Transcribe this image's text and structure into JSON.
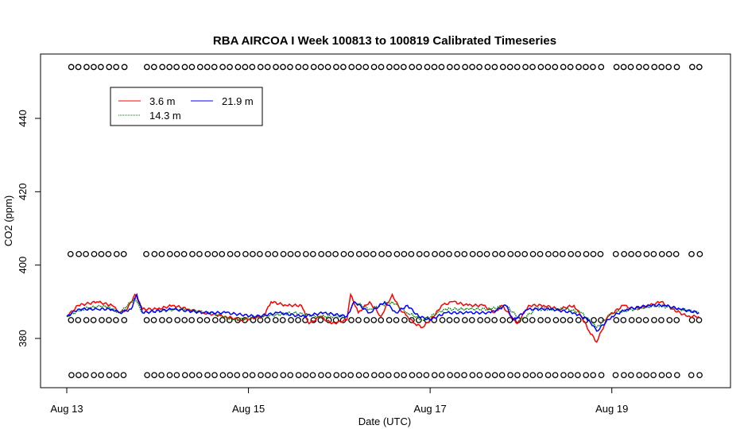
{
  "chart_data": {
    "type": "line",
    "title": "RBA AIRCOA I  Week 100813 to 100819  Calibrated Timeseries",
    "xlabel": "Date (UTC)",
    "ylabel": "CO2 (ppm)",
    "xlim": [
      "2010-08-13T00:00",
      "2010-08-20T00:00"
    ],
    "ylim": [
      367,
      457
    ],
    "x_ticks": [
      {
        "date": "2010-08-13T00:00",
        "label": "Aug 13"
      },
      {
        "date": "2010-08-15T00:00",
        "label": "Aug 15"
      },
      {
        "date": "2010-08-17T00:00",
        "label": "Aug 17"
      },
      {
        "date": "2010-08-19T00:00",
        "label": "Aug 19"
      }
    ],
    "y_ticks": [
      380,
      400,
      420,
      440
    ],
    "legend": {
      "placement": "top-left",
      "entries": [
        {
          "label": "3.6 m",
          "color": "#ff0000",
          "line": "solid"
        },
        {
          "label": "14.3 m",
          "color": "#008000",
          "line": "dotted"
        },
        {
          "label": "21.9 m",
          "color": "#0000ff",
          "line": "solid"
        }
      ]
    },
    "series": [
      {
        "name": "3.6 m",
        "color": "#ff0000",
        "points": [
          [
            "2010-08-13T00:00",
            386
          ],
          [
            "2010-08-13T03:00",
            389
          ],
          [
            "2010-08-13T08:00",
            390
          ],
          [
            "2010-08-13T12:00",
            389
          ],
          [
            "2010-08-13T14:00",
            387
          ],
          [
            "2010-08-13T16:00",
            388
          ],
          [
            "2010-08-13T18:00",
            392
          ],
          [
            "2010-08-13T20:00",
            388
          ],
          [
            "2010-08-14T00:00",
            388
          ],
          [
            "2010-08-14T04:00",
            389
          ],
          [
            "2010-08-14T08:00",
            388
          ],
          [
            "2010-08-14T12:00",
            387
          ],
          [
            "2010-08-14T18:00",
            386
          ],
          [
            "2010-08-14T22:00",
            385
          ],
          [
            "2010-08-15T04:00",
            386
          ],
          [
            "2010-08-15T06:00",
            390
          ],
          [
            "2010-08-15T10:00",
            389
          ],
          [
            "2010-08-15T14:00",
            389
          ],
          [
            "2010-08-15T16:00",
            384
          ],
          [
            "2010-08-15T19:00",
            386
          ],
          [
            "2010-08-15T22:00",
            384
          ],
          [
            "2010-08-16T02:00",
            385
          ],
          [
            "2010-08-16T03:00",
            392
          ],
          [
            "2010-08-16T05:00",
            387
          ],
          [
            "2010-08-16T08:00",
            390
          ],
          [
            "2010-08-16T11:00",
            386
          ],
          [
            "2010-08-16T14:00",
            392
          ],
          [
            "2010-08-16T16:00",
            388
          ],
          [
            "2010-08-16T18:00",
            386
          ],
          [
            "2010-08-16T20:00",
            384
          ],
          [
            "2010-08-16T22:00",
            383
          ],
          [
            "2010-08-17T01:00",
            386
          ],
          [
            "2010-08-17T03:00",
            389
          ],
          [
            "2010-08-17T06:00",
            390
          ],
          [
            "2010-08-17T10:00",
            389
          ],
          [
            "2010-08-17T14:00",
            389
          ],
          [
            "2010-08-17T17:00",
            387
          ],
          [
            "2010-08-17T19:00",
            389
          ],
          [
            "2010-08-17T23:00",
            384
          ],
          [
            "2010-08-18T02:00",
            389
          ],
          [
            "2010-08-18T06:00",
            389
          ],
          [
            "2010-08-18T10:00",
            388
          ],
          [
            "2010-08-18T14:00",
            389
          ],
          [
            "2010-08-18T16:00",
            386
          ],
          [
            "2010-08-18T18:00",
            382
          ],
          [
            "2010-08-18T20:00",
            379
          ],
          [
            "2010-08-18T23:00",
            386
          ],
          [
            "2010-08-19T03:00",
            389
          ],
          [
            "2010-08-19T06:00",
            388
          ],
          [
            "2010-08-19T10:00",
            389
          ],
          [
            "2010-08-19T13:00",
            390
          ],
          [
            "2010-08-19T16:00",
            388
          ],
          [
            "2010-08-19T20:00",
            386
          ],
          [
            "2010-08-19T23:00",
            386
          ]
        ]
      },
      {
        "name": "14.3 m",
        "color": "#008000",
        "points": [
          [
            "2010-08-13T00:00",
            386
          ],
          [
            "2010-08-13T04:00",
            388
          ],
          [
            "2010-08-13T10:00",
            389
          ],
          [
            "2010-08-13T14:00",
            387
          ],
          [
            "2010-08-13T18:00",
            391
          ],
          [
            "2010-08-13T20:00",
            387
          ],
          [
            "2010-08-14T06:00",
            388
          ],
          [
            "2010-08-14T14:00",
            387
          ],
          [
            "2010-08-14T20:00",
            385
          ],
          [
            "2010-08-15T04:00",
            386
          ],
          [
            "2010-08-15T12:00",
            387
          ],
          [
            "2010-08-15T18:00",
            386
          ],
          [
            "2010-08-16T02:00",
            386
          ],
          [
            "2010-08-16T04:00",
            390
          ],
          [
            "2010-08-16T08:00",
            388
          ],
          [
            "2010-08-16T14:00",
            390
          ],
          [
            "2010-08-16T18:00",
            387
          ],
          [
            "2010-08-16T22:00",
            385
          ],
          [
            "2010-08-17T04:00",
            388
          ],
          [
            "2010-08-17T10:00",
            388
          ],
          [
            "2010-08-17T16:00",
            388
          ],
          [
            "2010-08-17T20:00",
            389
          ],
          [
            "2010-08-18T00:00",
            385
          ],
          [
            "2010-08-18T04:00",
            388
          ],
          [
            "2010-08-18T12:00",
            388
          ],
          [
            "2010-08-18T16:00",
            387
          ],
          [
            "2010-08-18T20:00",
            383
          ],
          [
            "2010-08-19T00:00",
            387
          ],
          [
            "2010-08-19T06:00",
            388
          ],
          [
            "2010-08-19T12:00",
            389
          ],
          [
            "2010-08-19T18:00",
            388
          ],
          [
            "2010-08-19T23:00",
            387
          ]
        ]
      },
      {
        "name": "21.9 m",
        "color": "#0000ff",
        "points": [
          [
            "2010-08-13T00:00",
            386
          ],
          [
            "2010-08-13T03:00",
            388
          ],
          [
            "2010-08-13T08:00",
            388
          ],
          [
            "2010-08-13T12:00",
            388
          ],
          [
            "2010-08-13T14:00",
            387
          ],
          [
            "2010-08-13T17:00",
            388
          ],
          [
            "2010-08-13T18:30",
            392
          ],
          [
            "2010-08-13T20:00",
            387
          ],
          [
            "2010-08-14T04:00",
            388
          ],
          [
            "2010-08-14T12:00",
            387
          ],
          [
            "2010-08-14T18:00",
            387
          ],
          [
            "2010-08-15T02:00",
            386
          ],
          [
            "2010-08-15T08:00",
            387
          ],
          [
            "2010-08-15T14:00",
            386
          ],
          [
            "2010-08-15T20:00",
            387
          ],
          [
            "2010-08-16T02:00",
            386
          ],
          [
            "2010-08-16T04:00",
            390
          ],
          [
            "2010-08-16T08:00",
            387
          ],
          [
            "2010-08-16T12:00",
            390
          ],
          [
            "2010-08-16T15:00",
            387
          ],
          [
            "2010-08-16T18:00",
            389
          ],
          [
            "2010-08-16T21:00",
            386
          ],
          [
            "2010-08-17T00:00",
            385
          ],
          [
            "2010-08-17T04:00",
            387
          ],
          [
            "2010-08-17T10:00",
            387
          ],
          [
            "2010-08-17T16:00",
            387
          ],
          [
            "2010-08-17T20:00",
            389
          ],
          [
            "2010-08-17T22:00",
            385
          ],
          [
            "2010-08-18T02:00",
            388
          ],
          [
            "2010-08-18T08:00",
            388
          ],
          [
            "2010-08-18T14:00",
            387
          ],
          [
            "2010-08-18T18:00",
            385
          ],
          [
            "2010-08-18T20:00",
            382
          ],
          [
            "2010-08-19T00:00",
            386
          ],
          [
            "2010-08-19T04:00",
            388
          ],
          [
            "2010-08-19T10:00",
            389
          ],
          [
            "2010-08-19T14:00",
            389
          ],
          [
            "2010-08-19T18:00",
            388
          ],
          [
            "2010-08-19T23:00",
            387
          ]
        ]
      }
    ],
    "calibration_markers": {
      "symbol": "open circle",
      "color": "#000000",
      "levels": [
        454,
        403,
        385,
        370
      ],
      "gaps": [
        [
          "2010-08-13T16:00",
          "2010-08-13T19:00"
        ],
        [
          "2010-08-18T22:00",
          "2010-08-19T00:00"
        ],
        [
          "2010-08-19T18:00",
          "2010-08-19T20:00"
        ]
      ],
      "interval_hours": 2
    }
  }
}
